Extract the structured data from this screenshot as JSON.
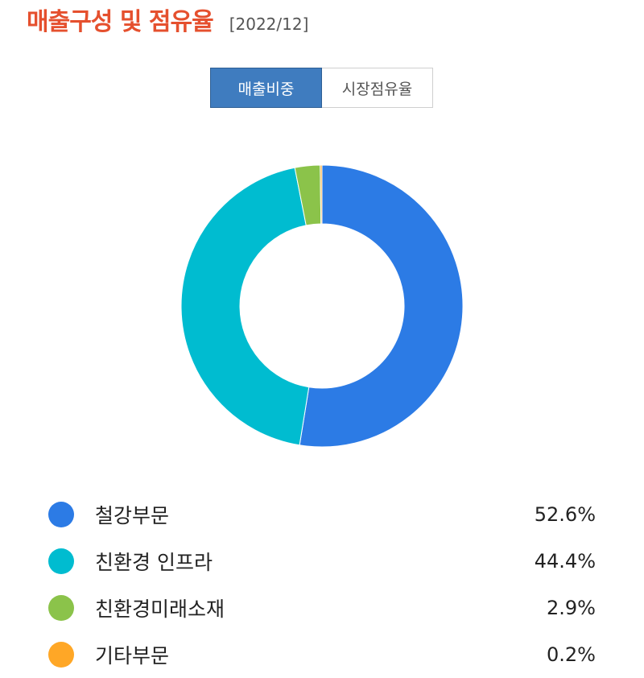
{
  "header": {
    "title": "매출구성 및 점유율",
    "date": "[2022/12]"
  },
  "tabs": [
    {
      "label": "매출비중",
      "active": true
    },
    {
      "label": "시장점유율",
      "active": false
    }
  ],
  "chart_data": {
    "type": "pie",
    "donut": true,
    "categories": [
      "철강부문",
      "친환경 인프라",
      "친환경미래소재",
      "기타부문"
    ],
    "values": [
      52.6,
      44.4,
      2.9,
      0.2
    ],
    "value_labels": [
      "52.6%",
      "44.4%",
      "2.9%",
      "0.2%"
    ],
    "colors": [
      "#2c7be5",
      "#00bcd0",
      "#8bc34a",
      "#ffa726"
    ],
    "legend": "bottom"
  }
}
